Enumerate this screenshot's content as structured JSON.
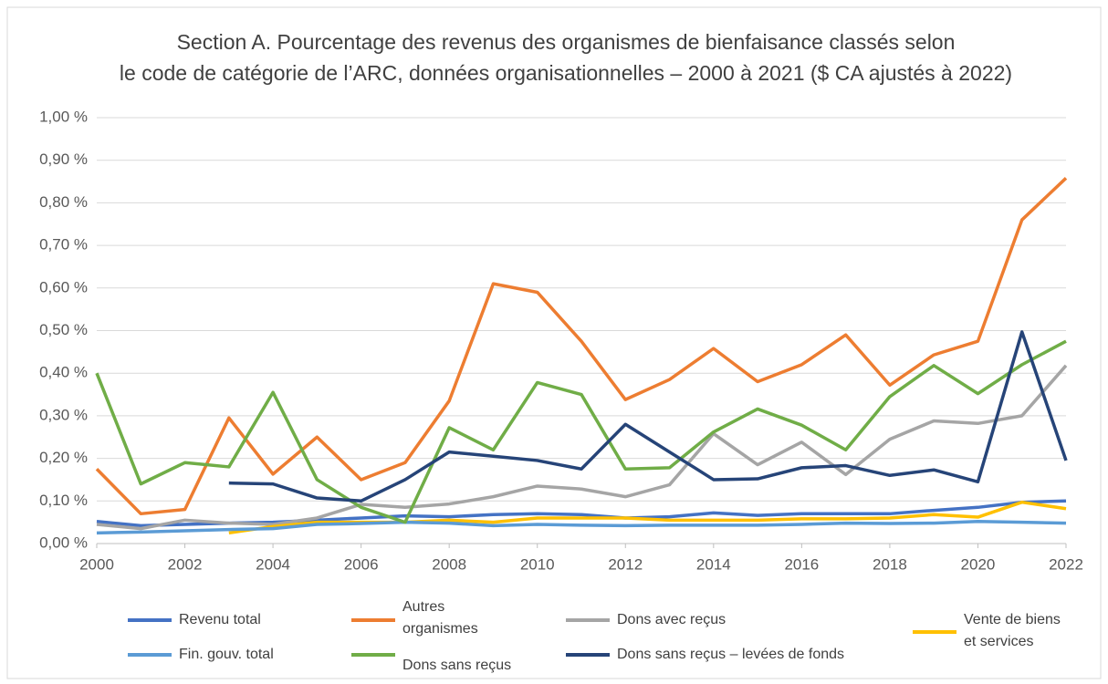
{
  "chart_data": {
    "type": "line",
    "title": [
      "Section A. Pourcentage des revenus des organismes de bienfaisance classés selon",
      "le code de catégorie de l’ARC, données organisationnelles – 2000 à 2021 ($ CA ajustés à 2022)"
    ],
    "x": [
      2000,
      2001,
      2002,
      2003,
      2004,
      2005,
      2006,
      2007,
      2008,
      2009,
      2010,
      2011,
      2012,
      2013,
      2014,
      2015,
      2016,
      2017,
      2018,
      2019,
      2020,
      2021,
      2022
    ],
    "xlim": [
      2000,
      2022
    ],
    "xticks": [
      2000,
      2002,
      2004,
      2006,
      2008,
      2010,
      2012,
      2014,
      2016,
      2018,
      2020,
      2022
    ],
    "ylim": [
      0,
      1
    ],
    "yticks": [
      {
        "value": 0,
        "label": "0,00 %"
      },
      {
        "value": 0.1,
        "label": "0,10 %"
      },
      {
        "value": 0.2,
        "label": "0,20 %"
      },
      {
        "value": 0.3,
        "label": "0,30 %"
      },
      {
        "value": 0.4,
        "label": "0,40 %"
      },
      {
        "value": 0.5,
        "label": "0,50 %"
      },
      {
        "value": 0.6,
        "label": "0,60 %"
      },
      {
        "value": 0.7,
        "label": "0,70 %"
      },
      {
        "value": 0.8,
        "label": "0,80 %"
      },
      {
        "value": 0.9,
        "label": "0,90 %"
      },
      {
        "value": 1,
        "label": "1,00 %"
      }
    ],
    "grid": true,
    "legend": "bottom",
    "series": [
      {
        "name": "Revenu total",
        "color": "#4472c4",
        "values": [
          0.052,
          0.042,
          0.045,
          0.048,
          0.05,
          0.055,
          0.06,
          0.065,
          0.063,
          0.068,
          0.07,
          0.068,
          0.06,
          0.063,
          0.072,
          0.066,
          0.07,
          0.07,
          0.07,
          0.078,
          0.085,
          0.097,
          0.1
        ]
      },
      {
        "name": "Autres organismes",
        "color": "#ed7d31",
        "values": [
          0.175,
          0.07,
          0.08,
          0.295,
          0.163,
          0.25,
          0.15,
          0.19,
          0.335,
          0.61,
          0.59,
          0.475,
          0.338,
          0.385,
          0.458,
          0.38,
          0.42,
          0.49,
          0.372,
          0.443,
          0.475,
          0.76,
          0.858
        ]
      },
      {
        "name": "Dons avec reçus",
        "color": "#a5a5a5",
        "values": [
          0.045,
          0.035,
          0.055,
          0.048,
          0.045,
          0.06,
          0.092,
          0.085,
          0.093,
          0.11,
          0.135,
          0.128,
          0.11,
          0.138,
          0.258,
          0.185,
          0.238,
          0.162,
          0.245,
          0.288,
          0.282,
          0.3,
          0.418
        ]
      },
      {
        "name": "Vente de biens et services",
        "color": "#ffc000",
        "values": [
          null,
          null,
          null,
          0.025,
          0.04,
          0.05,
          0.05,
          0.05,
          0.055,
          0.05,
          0.06,
          0.06,
          0.06,
          0.055,
          0.055,
          0.055,
          0.058,
          0.058,
          0.06,
          0.068,
          0.062,
          0.097,
          0.082
        ]
      },
      {
        "name": "Fin. gouv. total",
        "color": "#5b9bd5",
        "values": [
          0.025,
          0.027,
          0.03,
          0.033,
          0.035,
          0.045,
          0.047,
          0.05,
          0.048,
          0.042,
          0.045,
          0.043,
          0.042,
          0.043,
          0.043,
          0.043,
          0.045,
          0.048,
          0.047,
          0.048,
          0.052,
          0.05,
          0.048
        ]
      },
      {
        "name": "Dons sans reçus",
        "color": "#70ad47",
        "values": [
          0.4,
          0.14,
          0.19,
          0.18,
          0.355,
          0.15,
          0.085,
          0.05,
          0.272,
          0.22,
          0.378,
          0.35,
          0.175,
          0.178,
          0.262,
          0.316,
          0.278,
          0.22,
          0.345,
          0.418,
          0.352,
          0.42,
          0.475
        ]
      },
      {
        "name": "Dons sans reçus – levées de fonds",
        "color": "#264478",
        "values": [
          null,
          null,
          null,
          0.142,
          0.14,
          0.107,
          0.1,
          0.15,
          0.215,
          0.205,
          0.195,
          0.175,
          0.28,
          0.215,
          0.15,
          0.152,
          0.178,
          0.183,
          0.16,
          0.173,
          0.145,
          0.497,
          0.195
        ]
      }
    ]
  }
}
